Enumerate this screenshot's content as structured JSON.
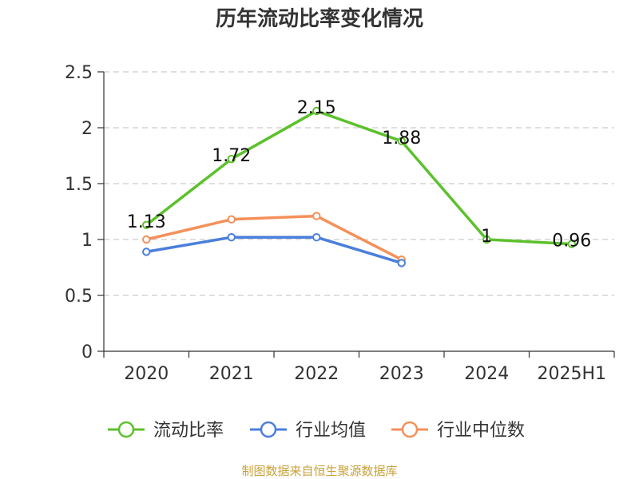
{
  "chart_data": {
    "type": "line",
    "title": "历年流动比率变化情况",
    "categories": [
      "2020",
      "2021",
      "2022",
      "2023",
      "2024",
      "2025H1"
    ],
    "y_ticks": [
      "0",
      "0.5",
      "1",
      "1.5",
      "2",
      "2.5"
    ],
    "ylim": [
      0,
      2.5
    ],
    "grid": true,
    "legend_position": "bottom",
    "series": [
      {
        "name": "流动比率",
        "color": "#5cc12c",
        "values": [
          1.13,
          1.72,
          2.15,
          1.88,
          1,
          0.96
        ],
        "labels": [
          "1.13",
          "1.72",
          "2.15",
          "1.88",
          "1",
          "0.96"
        ]
      },
      {
        "name": "行业均值",
        "color": "#4a7fdc",
        "values": [
          0.89,
          1.02,
          1.02,
          0.79,
          null,
          null
        ],
        "labels": []
      },
      {
        "name": "行业中位数",
        "color": "#f5905a",
        "values": [
          1.0,
          1.18,
          1.21,
          0.82,
          null,
          null
        ],
        "labels": []
      }
    ],
    "source": "制图数据来自恒生聚源数据库"
  }
}
